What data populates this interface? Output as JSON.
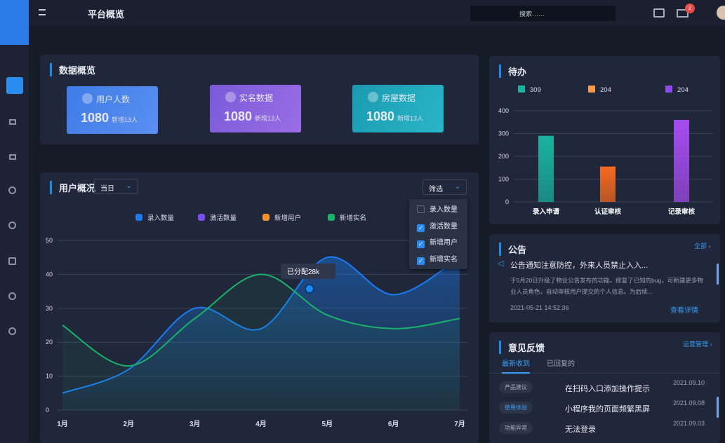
{
  "header": {
    "title": "平台概览",
    "search_placeholder": "搜索……",
    "badge": "2"
  },
  "overview": {
    "title": "数据概览",
    "cards": [
      {
        "label": "用户人数",
        "value": 1080,
        "sub": "新增13人"
      },
      {
        "label": "实名数据",
        "value": 1080,
        "sub": "新增13人"
      },
      {
        "label": "房屋数据",
        "value": 1080,
        "sub": "新增13人"
      }
    ]
  },
  "user_panel": {
    "title": "用户概况",
    "period": "当日",
    "filter": "筛选",
    "filter_options": [
      {
        "label": "录入数量",
        "checked": false
      },
      {
        "label": "激活数量",
        "checked": true
      },
      {
        "label": "新增用户",
        "checked": true
      },
      {
        "label": "新增实名",
        "checked": true
      }
    ]
  },
  "todo": {
    "title": "待办"
  },
  "notice": {
    "title": "公告",
    "more": "全部",
    "headline": "公告通知注意防控，外来人员禁止入入...",
    "body": "于5月20日升级了物业公告发布的功能，修复了已知的bug，可新建更多物业人员角色，自动审核用户提交的个人信息。为后续...",
    "date": "2021-05-21 14:52:36",
    "link": "查看详情"
  },
  "feedback": {
    "title": "意见反馈",
    "more": "运营管理",
    "tabs": [
      "最新收到",
      "已回复的"
    ],
    "items": [
      {
        "tag": "产品建议",
        "text": "在扫码入口添加操作提示",
        "date": "2021.09.10"
      },
      {
        "tag": "使用体验",
        "text": "小程序我的页面频繁黑屏",
        "date": "2021.09.08"
      },
      {
        "tag": "功能异常",
        "text": "无法登录",
        "date": "2021.09.03"
      }
    ]
  },
  "chart_data": [
    {
      "type": "line",
      "categories": [
        "1月",
        "2月",
        "3月",
        "4月",
        "5月",
        "6月",
        "7月"
      ],
      "ylim": [
        0,
        50
      ],
      "yticks": [
        0,
        10,
        20,
        30,
        40,
        50
      ],
      "grid": true,
      "annotation": "已分配28k",
      "series": [
        {
          "name": "录入数量",
          "color": "#1a7cf0",
          "values": [
            5,
            12,
            30,
            24,
            45,
            34,
            45
          ]
        },
        {
          "name": "激活数量",
          "color": "#7b4ef0",
          "values": [
            null,
            null,
            null,
            null,
            null,
            null,
            null
          ]
        },
        {
          "name": "新增用户",
          "color": "#f5922e",
          "values": [
            null,
            null,
            null,
            null,
            null,
            null,
            null
          ]
        },
        {
          "name": "新增实名",
          "color": "#19b36b",
          "values": [
            25,
            13,
            27,
            40,
            28,
            24,
            27
          ]
        }
      ]
    },
    {
      "type": "bar",
      "categories": [
        "录入申请",
        "认证审核",
        "记录审核"
      ],
      "values": [
        290,
        155,
        360
      ],
      "colors": [
        "#19b3a0",
        "#f56a1e",
        "#a54cf0"
      ],
      "ylim": [
        0,
        400
      ],
      "yticks": [
        0,
        100,
        200,
        300,
        400
      ],
      "grid": true,
      "legend": [
        {
          "name": "309",
          "color": "#19b3a0"
        },
        {
          "name": "204",
          "color": "#f59a4e"
        },
        {
          "name": "204",
          "color": "#8a4cf0"
        }
      ]
    }
  ]
}
